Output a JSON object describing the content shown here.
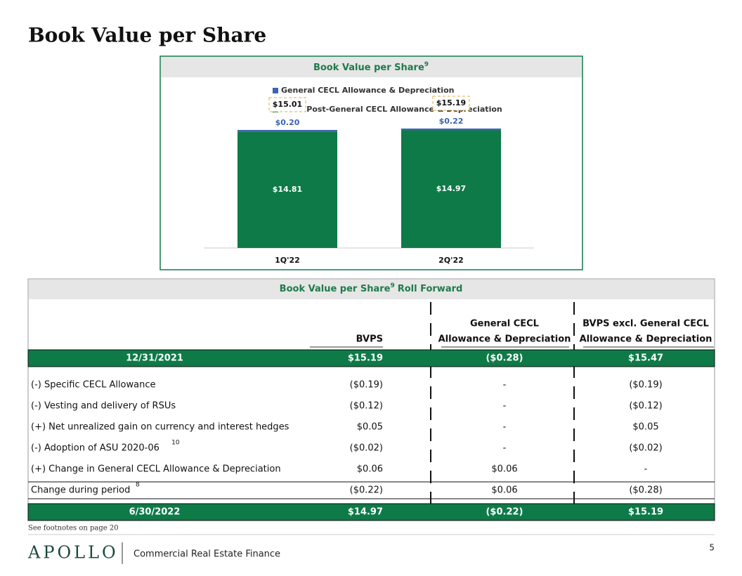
{
  "title": "Book Value per Share",
  "chart_data": {
    "type": "stacked-bar",
    "title": "Book Value per Share",
    "title_note": "9",
    "categories": [
      "1Q'22",
      "2Q'22"
    ],
    "series": [
      {
        "name": "BVPS Post-General CECL Allowance & Depreciation",
        "color": "#0e7a48",
        "values": [
          14.81,
          14.97
        ],
        "value_labels": [
          "$14.81",
          "$14.97"
        ]
      },
      {
        "name": "General CECL Allowance & Depreciation",
        "color": "#3b65b0",
        "values": [
          0.2,
          0.22
        ],
        "value_labels": [
          "$0.20",
          "$0.22"
        ]
      }
    ],
    "totals": [
      15.01,
      15.19
    ],
    "total_labels": [
      "$15.01",
      "$15.19"
    ]
  },
  "table": {
    "title": "Book Value per Share",
    "title_note": "9",
    "title_suffix": "Roll Forward",
    "columns": [
      [
        "BVPS"
      ],
      [
        "General CECL",
        "Allowance & Depreciation"
      ],
      [
        "BVPS excl. General CECL",
        "Allowance & Depreciation"
      ]
    ],
    "opening": {
      "label": "12/31/2021",
      "values": [
        "$15.19",
        "($0.28)",
        "$15.47"
      ]
    },
    "items": [
      {
        "label": "(-) Specific CECL Allowance",
        "values": [
          "($0.19)",
          "-",
          "($0.19)"
        ]
      },
      {
        "label": "(-) Vesting and delivery of RSUs",
        "values": [
          "($0.12)",
          "-",
          "($0.12)"
        ]
      },
      {
        "label": "(+) Net unrealized gain on currency and interest hedges",
        "values": [
          "$0.05",
          "-",
          "$0.05"
        ]
      },
      {
        "label": "(-) Adoption of ASU 2020-06",
        "note": "10",
        "values": [
          "($0.02)",
          "-",
          "($0.02)"
        ]
      },
      {
        "label": "(+) Change in General CECL Allowance & Depreciation",
        "values": [
          "$0.06",
          "$0.06",
          "-"
        ]
      }
    ],
    "change": {
      "label": "Change during period",
      "note": "8",
      "values": [
        "($0.22)",
        "$0.06",
        "($0.28)"
      ]
    },
    "closing": {
      "label": "6/30/2022",
      "values": [
        "$14.97",
        "($0.22)",
        "$15.19"
      ]
    }
  },
  "footnote": "See footnotes on page 20",
  "footer": {
    "logo": "APOLLO",
    "division": "Commercial Real Estate Finance",
    "page": "5"
  }
}
